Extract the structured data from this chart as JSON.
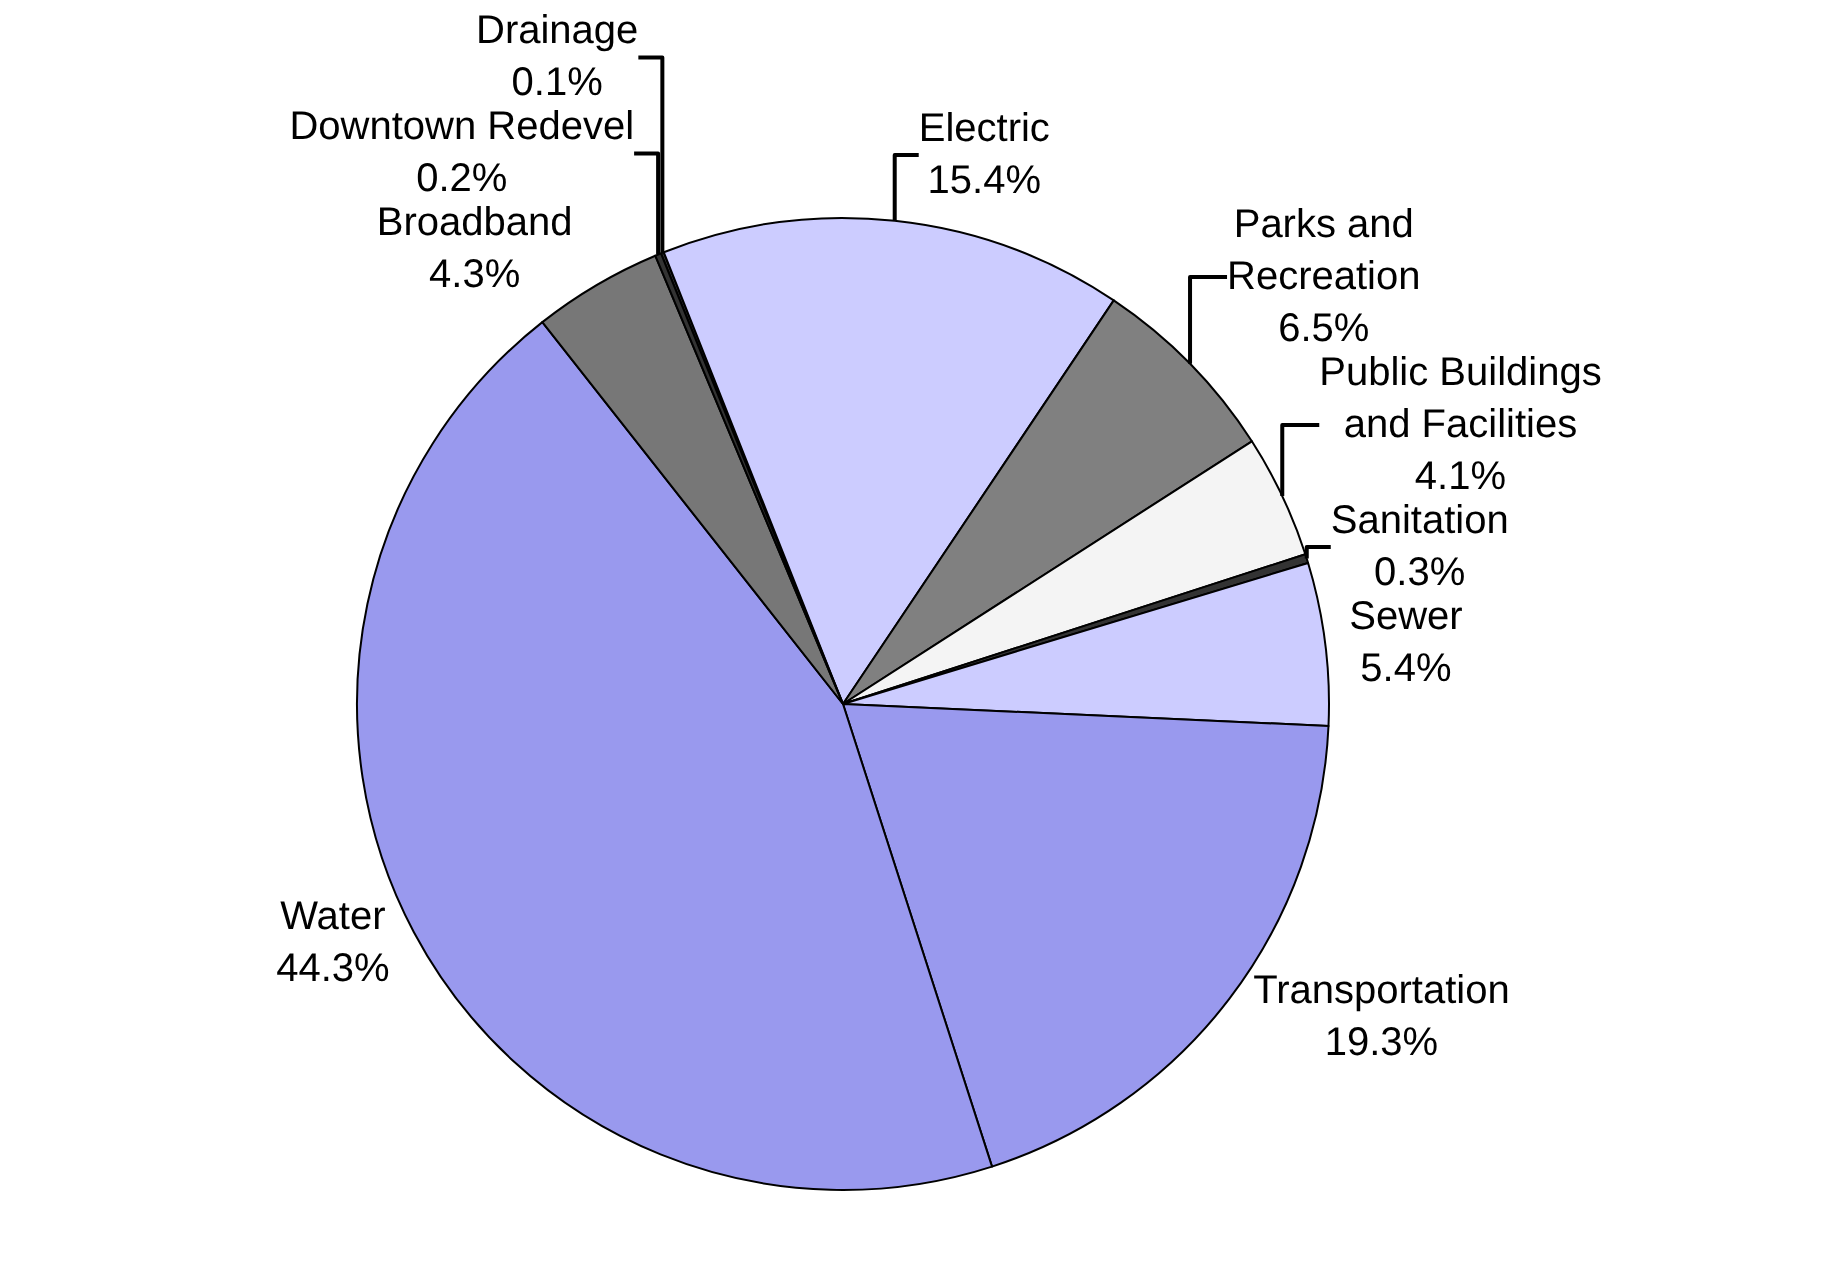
{
  "chart_data": {
    "type": "pie",
    "categories": [
      "Drainage",
      "Electric",
      "Parks and Recreation",
      "Public Buildings and Facilities",
      "Sanitation",
      "Sewer",
      "Transportation",
      "Water",
      "Broadband",
      "Downtown Redevel"
    ],
    "values": [
      0.1,
      15.4,
      6.5,
      4.1,
      0.3,
      5.4,
      19.3,
      44.3,
      4.3,
      0.2
    ],
    "value_labels": [
      "0.1%",
      "15.4%",
      "6.5%",
      "4.1%",
      "0.3%",
      "5.4%",
      "19.3%",
      "44.3%",
      "4.3%",
      "0.2%"
    ],
    "colors": [
      "#333333",
      "#ccccff",
      "#808080",
      "#f4f4f4",
      "#333333",
      "#ccccff",
      "#9999ee",
      "#9999ee",
      "#777777",
      "#333333"
    ]
  }
}
